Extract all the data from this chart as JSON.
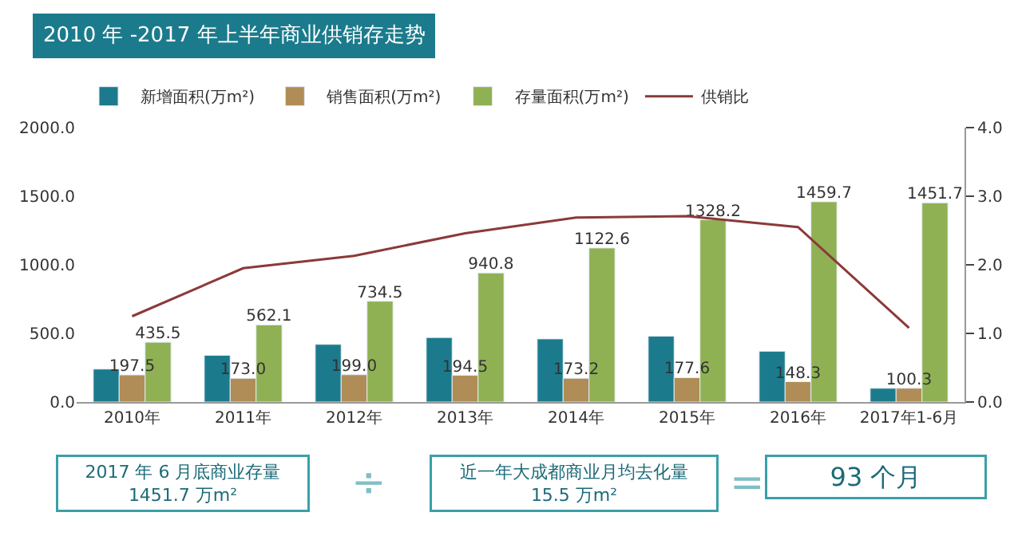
{
  "chart_data": {
    "type": "bar",
    "title": "2010 年 -2017 年上半年商业供销存走势",
    "categories": [
      "2010年",
      "2011年",
      "2012年",
      "2013年",
      "2014年",
      "2015年",
      "2016年",
      "2017年1-6月"
    ],
    "series": [
      {
        "name": "新增面积(万m²)",
        "color": "#1b7b8c",
        "values": [
          240,
          340,
          420,
          470,
          460,
          480,
          370,
          100
        ]
      },
      {
        "name": "销售面积(万m²)",
        "color": "#b08d57",
        "values": [
          197.5,
          173.0,
          199.0,
          194.5,
          173.2,
          177.6,
          148.3,
          100.3
        ],
        "value_labels": [
          "197.5",
          "173.0",
          "199.0",
          "194.5",
          "173.2",
          "177.6",
          "148.3",
          "100.3"
        ]
      },
      {
        "name": "存量面积(万m²)",
        "color": "#8fb154",
        "values": [
          435.5,
          562.1,
          734.5,
          940.8,
          1122.6,
          1328.2,
          1459.7,
          1451.7
        ],
        "value_labels": [
          "435.5",
          "562.1",
          "734.5",
          "940.8",
          "1122.6",
          "1328.2",
          "1459.7",
          "1451.7"
        ]
      },
      {
        "name": "供销比",
        "color": "#8b3a3a",
        "type": "line",
        "axis": "y2",
        "values": [
          1.25,
          1.95,
          2.13,
          2.46,
          2.69,
          2.71,
          2.55,
          1.08
        ]
      }
    ],
    "ylim": [
      0,
      2000
    ],
    "yticks": [
      {
        "value": 0,
        "label": "0.0"
      },
      {
        "value": 500,
        "label": "500.0"
      },
      {
        "value": 1000,
        "label": "1000.0"
      },
      {
        "value": 1500,
        "label": "1500.0"
      },
      {
        "value": 2000,
        "label": "2000.0"
      }
    ],
    "y2lim": [
      0,
      4
    ],
    "y2ticks": [
      {
        "value": 0,
        "label": "0.0"
      },
      {
        "value": 1,
        "label": "1.0"
      },
      {
        "value": 2,
        "label": "2.0"
      },
      {
        "value": 3,
        "label": "3.0"
      },
      {
        "value": 4,
        "label": "4.0"
      }
    ],
    "legend": "top left",
    "annotations": [
      "2017 年 6 月底商业存量\n1451.7 万m²",
      "÷",
      "近一年大成都商业月均去化量\n15.5 万m²",
      "=",
      "93 个月"
    ]
  }
}
